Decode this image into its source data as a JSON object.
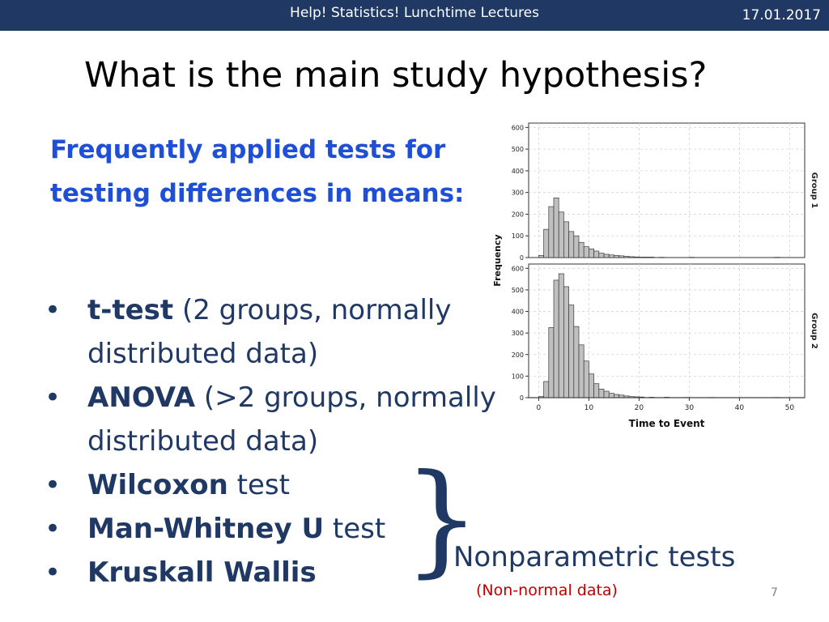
{
  "header": {
    "lecture_title": "Help! Statistics! Lunchtime Lectures",
    "date": "17.01.2017"
  },
  "slide": {
    "title": "What is the main study hypothesis?",
    "subtitle_line1": "Frequently applied tests for",
    "subtitle_line2": "testing differences in means:",
    "bullets": [
      {
        "bold": "t-test",
        "rest": " (2 groups, normally distributed data)"
      },
      {
        "bold": "ANOVA",
        "rest": " (>2 groups, normally distributed data)"
      },
      {
        "bold": "Wilcoxon",
        "rest": " test"
      },
      {
        "bold": "Man-Whitney U",
        "rest": " test"
      },
      {
        "bold": "Kruskall Wallis",
        "rest": ""
      }
    ],
    "bullet_char": "•",
    "brace_char": "}",
    "nonparametric_label": "Nonparametric tests",
    "nonparametric_sub": "(Non-normal data)",
    "page_number": "7"
  },
  "colors": {
    "header_bg": "#1f3864",
    "subtitle": "#1f4fd6",
    "body_text": "#1f3864",
    "accent_red": "#c00000",
    "bar_fill": "#c0c0c0"
  },
  "chart_data": {
    "type": "bar",
    "xlabel": "Time to Event",
    "ylabel": "Frequency",
    "xlim": [
      -2,
      53
    ],
    "ylim": [
      0,
      620
    ],
    "x_ticks": [
      0,
      10,
      20,
      30,
      40,
      50
    ],
    "y_ticks": [
      0,
      100,
      200,
      300,
      400,
      500,
      600
    ],
    "bin_width": 1,
    "grid": true,
    "series": [
      {
        "name": "Group 1",
        "bin_starts": [
          0,
          1,
          2,
          3,
          4,
          5,
          6,
          7,
          8,
          9,
          10,
          11,
          12,
          13,
          14,
          15,
          16,
          17,
          18,
          19,
          20,
          21,
          22,
          24,
          30,
          47
        ],
        "values": [
          10,
          130,
          235,
          275,
          210,
          165,
          120,
          100,
          70,
          50,
          40,
          30,
          20,
          15,
          12,
          10,
          8,
          6,
          4,
          3,
          2,
          2,
          2,
          1,
          1,
          1
        ]
      },
      {
        "name": "Group 2",
        "bin_starts": [
          0,
          1,
          2,
          3,
          4,
          5,
          6,
          7,
          8,
          9,
          10,
          11,
          12,
          13,
          14,
          15,
          16,
          17,
          18,
          19,
          20,
          22,
          25,
          29,
          34,
          47
        ],
        "values": [
          5,
          75,
          325,
          545,
          575,
          515,
          430,
          330,
          245,
          170,
          110,
          65,
          40,
          30,
          20,
          15,
          12,
          8,
          5,
          4,
          3,
          2,
          2,
          1,
          1,
          1
        ]
      }
    ]
  }
}
